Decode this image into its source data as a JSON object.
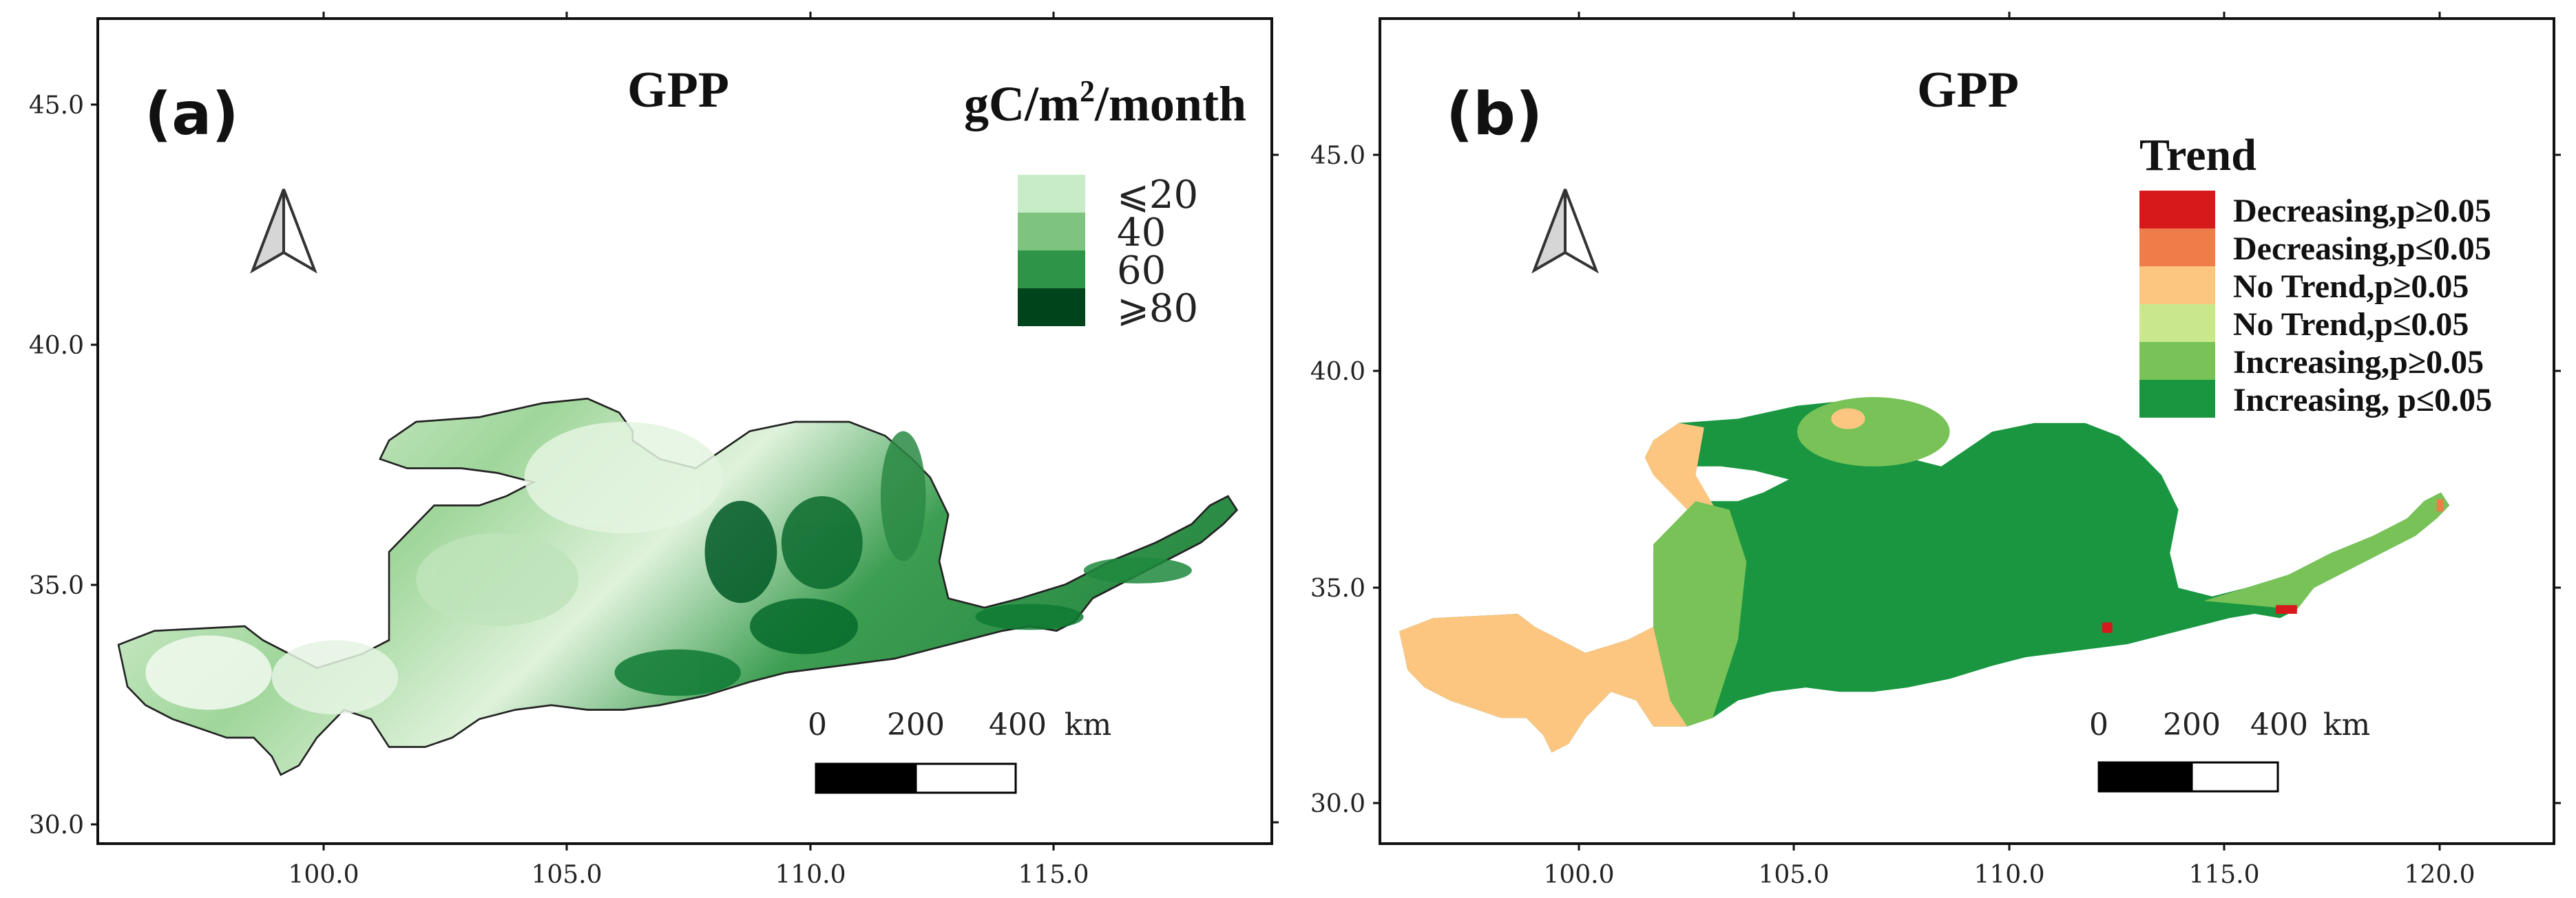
{
  "panel_a": {
    "label": "(a)",
    "title": "GPP",
    "unit_main": "gC/m",
    "unit_sup": "2",
    "unit_rest": "/month",
    "legend": [
      {
        "label": "⩽20",
        "color": "#c8ebc8"
      },
      {
        "label": "40",
        "color": "#7ec47e"
      },
      {
        "label": "60",
        "color": "#2e9448"
      },
      {
        "label": "⩾80",
        "color": "#00441b"
      }
    ],
    "x_ticks": [
      "100.0",
      "105.0",
      "110.0",
      "115.0"
    ],
    "y_ticks": [
      "45.0",
      "40.0",
      "35.0",
      "30.0"
    ],
    "scale_labels": [
      "0",
      "200",
      "400",
      "km"
    ]
  },
  "panel_b": {
    "label": "(b)",
    "title": "GPP",
    "legend_title": "Trend",
    "legend": [
      {
        "label": "Decreasing,p≥0.05",
        "color": "#d7191c"
      },
      {
        "label": "Decreasing,p≤0.05",
        "color": "#f07c4a"
      },
      {
        "label": "No Trend,p≥0.05",
        "color": "#fcc681"
      },
      {
        "label": "No Trend,p≤0.05",
        "color": "#c9e88c"
      },
      {
        "label": "Increasing,p≥0.05",
        "color": "#78c257"
      },
      {
        "label": "Increasing, p≤0.05",
        "color": "#1a9641"
      }
    ],
    "x_ticks": [
      "100.0",
      "105.0",
      "110.0",
      "115.0",
      "120.0"
    ],
    "y_ticks": [
      "45.0",
      "40.0",
      "35.0",
      "30.0"
    ],
    "scale_labels": [
      "0",
      "200",
      "400",
      "km"
    ]
  }
}
